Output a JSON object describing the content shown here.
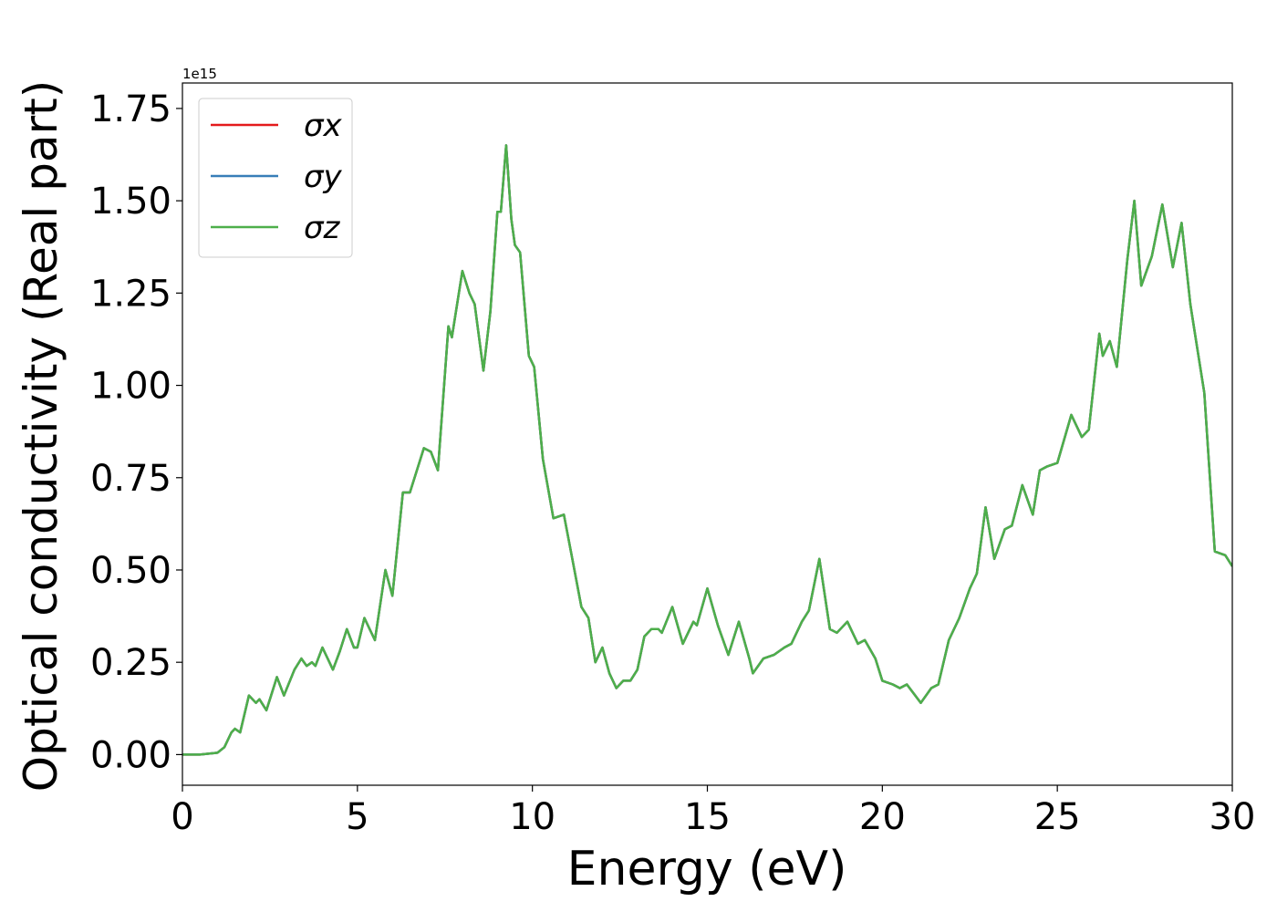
{
  "chart_data": {
    "type": "line",
    "x_label": "Energy (eV)",
    "y_label": "Optical conductivity (Real part)",
    "y_offset_label": "1e15",
    "xlim": [
      0,
      30
    ],
    "xticks": [
      0,
      5,
      10,
      15,
      20,
      25,
      30
    ],
    "ylim": [
      -0.083,
      1.819
    ],
    "yticks": [
      {
        "value": 0,
        "label": "0.00"
      },
      {
        "value": 0.25,
        "label": "0.25"
      },
      {
        "value": 0.5,
        "label": "0.50"
      },
      {
        "value": 0.75,
        "label": "0.75"
      },
      {
        "value": 1,
        "label": "1.00"
      },
      {
        "value": 1.25,
        "label": "1.25"
      },
      {
        "value": 1.5,
        "label": "1.50"
      },
      {
        "value": 1.75,
        "label": "1.75"
      }
    ],
    "legend": "upper left",
    "x": [
      0,
      0.5,
      1.0,
      1.2,
      1.4,
      1.5,
      1.65,
      1.9,
      2.1,
      2.2,
      2.4,
      2.7,
      2.9,
      3.2,
      3.4,
      3.55,
      3.7,
      3.8,
      4.0,
      4.3,
      4.5,
      4.7,
      4.9,
      5.0,
      5.2,
      5.5,
      5.8,
      6.0,
      6.3,
      6.5,
      6.9,
      7.1,
      7.3,
      7.6,
      7.7,
      8.0,
      8.2,
      8.35,
      8.6,
      8.8,
      9.0,
      9.1,
      9.25,
      9.4,
      9.5,
      9.65,
      9.9,
      10.05,
      10.3,
      10.6,
      10.9,
      11.1,
      11.4,
      11.6,
      11.8,
      12.0,
      12.2,
      12.4,
      12.6,
      12.8,
      13.0,
      13.2,
      13.4,
      13.6,
      13.7,
      14.0,
      14.3,
      14.6,
      14.7,
      15.0,
      15.3,
      15.6,
      15.9,
      16.2,
      16.3,
      16.6,
      16.9,
      17.2,
      17.4,
      17.7,
      17.9,
      18.2,
      18.5,
      18.7,
      19.0,
      19.3,
      19.5,
      19.8,
      20.0,
      20.3,
      20.5,
      20.7,
      21.1,
      21.4,
      21.6,
      21.9,
      22.2,
      22.5,
      22.7,
      22.95,
      23.2,
      23.5,
      23.7,
      24.0,
      24.3,
      24.5,
      24.7,
      25.0,
      25.4,
      25.7,
      25.9,
      26.2,
      26.3,
      26.5,
      26.7,
      27.0,
      27.2,
      27.4,
      27.7,
      28.0,
      28.3,
      28.55,
      28.8,
      29.0,
      29.2,
      29.5,
      29.8,
      30.0
    ],
    "series": [
      {
        "name": "σx",
        "color": "#e41a1c",
        "values": [
          0,
          0,
          0.005,
          0.02,
          0.06,
          0.07,
          0.06,
          0.16,
          0.14,
          0.15,
          0.12,
          0.21,
          0.16,
          0.23,
          0.26,
          0.24,
          0.25,
          0.24,
          0.29,
          0.23,
          0.28,
          0.34,
          0.29,
          0.29,
          0.37,
          0.31,
          0.5,
          0.43,
          0.71,
          0.71,
          0.83,
          0.82,
          0.77,
          1.16,
          1.13,
          1.31,
          1.25,
          1.22,
          1.04,
          1.2,
          1.47,
          1.47,
          1.65,
          1.45,
          1.38,
          1.36,
          1.08,
          1.05,
          0.8,
          0.64,
          0.65,
          0.55,
          0.4,
          0.37,
          0.25,
          0.29,
          0.22,
          0.18,
          0.2,
          0.2,
          0.23,
          0.32,
          0.34,
          0.34,
          0.33,
          0.4,
          0.3,
          0.36,
          0.35,
          0.45,
          0.35,
          0.27,
          0.36,
          0.26,
          0.22,
          0.26,
          0.27,
          0.29,
          0.3,
          0.36,
          0.39,
          0.53,
          0.34,
          0.33,
          0.36,
          0.3,
          0.31,
          0.26,
          0.2,
          0.19,
          0.18,
          0.19,
          0.14,
          0.18,
          0.19,
          0.31,
          0.37,
          0.45,
          0.49,
          0.67,
          0.53,
          0.61,
          0.62,
          0.73,
          0.65,
          0.77,
          0.78,
          0.79,
          0.92,
          0.86,
          0.88,
          1.14,
          1.08,
          1.12,
          1.05,
          1.34,
          1.5,
          1.27,
          1.35,
          1.49,
          1.32,
          1.44,
          1.22,
          1.1,
          0.98,
          0.55,
          0.54,
          0.51
        ]
      },
      {
        "name": "σy",
        "color": "#377eb8",
        "values": [
          0,
          0,
          0.005,
          0.02,
          0.06,
          0.07,
          0.06,
          0.16,
          0.14,
          0.15,
          0.12,
          0.21,
          0.16,
          0.23,
          0.26,
          0.24,
          0.25,
          0.24,
          0.29,
          0.23,
          0.28,
          0.34,
          0.29,
          0.29,
          0.37,
          0.31,
          0.5,
          0.43,
          0.71,
          0.71,
          0.83,
          0.82,
          0.77,
          1.16,
          1.13,
          1.31,
          1.25,
          1.22,
          1.04,
          1.2,
          1.47,
          1.47,
          1.65,
          1.45,
          1.38,
          1.36,
          1.08,
          1.05,
          0.8,
          0.64,
          0.65,
          0.55,
          0.4,
          0.37,
          0.25,
          0.29,
          0.22,
          0.18,
          0.2,
          0.2,
          0.23,
          0.32,
          0.34,
          0.34,
          0.33,
          0.4,
          0.3,
          0.36,
          0.35,
          0.45,
          0.35,
          0.27,
          0.36,
          0.26,
          0.22,
          0.26,
          0.27,
          0.29,
          0.3,
          0.36,
          0.39,
          0.53,
          0.34,
          0.33,
          0.36,
          0.3,
          0.31,
          0.26,
          0.2,
          0.19,
          0.18,
          0.19,
          0.14,
          0.18,
          0.19,
          0.31,
          0.37,
          0.45,
          0.49,
          0.67,
          0.53,
          0.61,
          0.62,
          0.73,
          0.65,
          0.77,
          0.78,
          0.79,
          0.92,
          0.86,
          0.88,
          1.14,
          1.08,
          1.12,
          1.05,
          1.34,
          1.5,
          1.27,
          1.35,
          1.49,
          1.32,
          1.44,
          1.22,
          1.1,
          0.98,
          0.55,
          0.54,
          0.51
        ]
      },
      {
        "name": "σz",
        "color": "#4daf4a",
        "values": [
          0,
          0,
          0.005,
          0.02,
          0.06,
          0.07,
          0.06,
          0.16,
          0.14,
          0.15,
          0.12,
          0.21,
          0.16,
          0.23,
          0.26,
          0.24,
          0.25,
          0.24,
          0.29,
          0.23,
          0.28,
          0.34,
          0.29,
          0.29,
          0.37,
          0.31,
          0.5,
          0.43,
          0.71,
          0.71,
          0.83,
          0.82,
          0.77,
          1.16,
          1.13,
          1.31,
          1.25,
          1.22,
          1.04,
          1.2,
          1.47,
          1.47,
          1.65,
          1.45,
          1.38,
          1.36,
          1.08,
          1.05,
          0.8,
          0.64,
          0.65,
          0.55,
          0.4,
          0.37,
          0.25,
          0.29,
          0.22,
          0.18,
          0.2,
          0.2,
          0.23,
          0.32,
          0.34,
          0.34,
          0.33,
          0.4,
          0.3,
          0.36,
          0.35,
          0.45,
          0.35,
          0.27,
          0.36,
          0.26,
          0.22,
          0.26,
          0.27,
          0.29,
          0.3,
          0.36,
          0.39,
          0.53,
          0.34,
          0.33,
          0.36,
          0.3,
          0.31,
          0.26,
          0.2,
          0.19,
          0.18,
          0.19,
          0.14,
          0.18,
          0.19,
          0.31,
          0.37,
          0.45,
          0.49,
          0.67,
          0.53,
          0.61,
          0.62,
          0.73,
          0.65,
          0.77,
          0.78,
          0.79,
          0.92,
          0.86,
          0.88,
          1.14,
          1.08,
          1.12,
          1.05,
          1.34,
          1.5,
          1.27,
          1.35,
          1.49,
          1.32,
          1.44,
          1.22,
          1.1,
          0.98,
          0.55,
          0.54,
          0.51
        ]
      }
    ]
  }
}
